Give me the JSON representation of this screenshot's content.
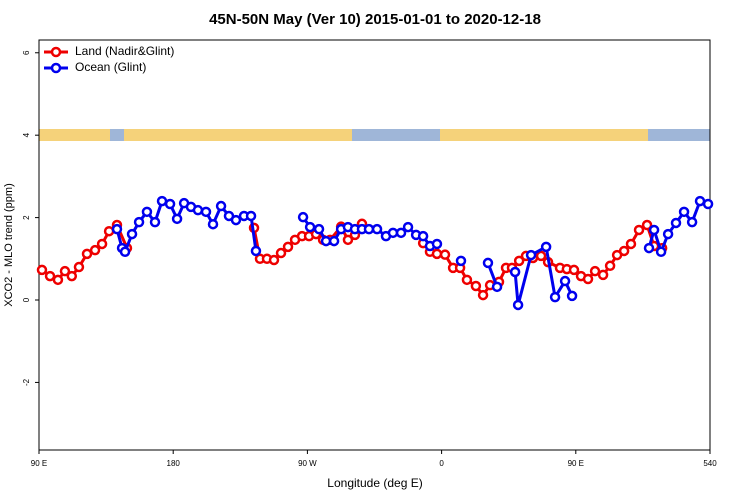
{
  "chart_data": {
    "type": "line",
    "title": "45N-50N May (Ver 10)   2015-01-01 to 2020-12-18",
    "x_label": "Longitude (deg E)",
    "y_label": "XCO2 - MLO trend (ppm)",
    "xlim": [
      90,
      540
    ],
    "ylim": [
      -3.64,
      6.31
    ],
    "xticks": [
      {
        "value": 90,
        "label": "90 E"
      },
      180,
      {
        "value": 270,
        "label": "90 W"
      },
      {
        "value": 360,
        "label": "0"
      },
      {
        "value": 450,
        "label": "90 E"
      },
      540
    ],
    "yticks": [
      -2,
      0,
      2,
      4,
      6
    ],
    "legend": "top-left",
    "series": [
      {
        "name": "Land (Nadir&Glint)",
        "color": "#ee0000",
        "x": [
          92,
          97.4,
          102.7,
          107.4,
          112,
          116.8,
          122.2,
          127.6,
          132.3,
          137,
          142.3,
          149,
          null,
          234.2,
          238.2,
          242.9,
          247.6,
          252.3,
          257,
          261.7,
          266.4,
          271.1,
          275.8,
          280.5,
          285.2,
          292.6,
          297.2,
          301.9,
          306.6,
          null,
          347.6,
          352.2,
          356.9,
          362.3,
          367.7,
          372.4,
          377,
          383,
          387.8,
          392.5,
          398.5,
          403.2,
          407.2,
          412,
          416.6,
          421.3,
          426.7,
          431.4,
          439.4,
          444,
          448.8,
          453.5,
          458.2,
          462.9,
          468.3,
          473,
          477.7,
          482.4,
          487,
          492.4,
          497.8,
          502.5,
          507.9
        ],
        "values": [
          0.73,
          0.58,
          0.49,
          0.7,
          0.58,
          0.8,
          1.12,
          1.21,
          1.36,
          1.67,
          1.82,
          1.26,
          null,
          1.75,
          1.0,
          1.0,
          0.97,
          1.14,
          1.29,
          1.46,
          1.55,
          1.55,
          1.6,
          1.46,
          1.46,
          1.78,
          1.46,
          1.58,
          1.85,
          null,
          1.38,
          1.17,
          1.12,
          1.1,
          0.78,
          0.78,
          0.49,
          0.34,
          0.12,
          0.36,
          0.44,
          0.78,
          0.78,
          0.95,
          1.07,
          1.02,
          1.07,
          0.92,
          0.78,
          0.75,
          0.73,
          0.58,
          0.51,
          0.7,
          0.61,
          0.83,
          1.09,
          1.19,
          1.36,
          1.7,
          1.82,
          1.31,
          1.26
        ]
      },
      {
        "name": "Ocean (Glint)",
        "color": "#0000ee",
        "x": [
          142.3,
          145.7,
          147.7,
          152.4,
          157.1,
          162.4,
          167.8,
          172.5,
          177.9,
          182.6,
          187.3,
          191.9,
          196.6,
          202,
          206.7,
          212.1,
          217.4,
          222.1,
          227.5,
          232.2,
          235.5,
          null,
          267.1,
          271.8,
          277.8,
          282.5,
          287.9,
          292.6,
          297.2,
          301.9,
          306.6,
          311.3,
          316.7,
          322.7,
          327.4,
          332.8,
          337.5,
          342.9,
          347.6,
          352.2,
          356.9,
          null,
          373,
          null,
          391.1,
          397.2,
          null,
          409.3,
          411.3,
          420,
          430.1,
          436.1,
          442.8,
          447.5,
          null,
          499.1,
          502.5,
          507.2,
          511.9,
          517.2,
          522.6,
          528,
          533.3,
          538.7
        ],
        "values": [
          1.72,
          1.26,
          1.17,
          1.6,
          1.89,
          2.14,
          1.89,
          2.4,
          2.33,
          1.97,
          2.35,
          2.26,
          2.18,
          2.14,
          1.84,
          2.28,
          2.04,
          1.94,
          2.04,
          2.04,
          1.19,
          null,
          2.01,
          1.77,
          1.72,
          1.43,
          1.43,
          1.72,
          1.77,
          1.72,
          1.72,
          1.72,
          1.72,
          1.55,
          1.63,
          1.63,
          1.77,
          1.58,
          1.55,
          1.31,
          1.36,
          null,
          0.95,
          null,
          0.9,
          0.32,
          null,
          0.68,
          -0.12,
          1.09,
          1.29,
          0.07,
          0.46,
          0.1,
          null,
          1.26,
          1.7,
          1.17,
          1.6,
          1.87,
          2.14,
          1.89,
          2.4,
          2.33
        ]
      }
    ]
  }
}
